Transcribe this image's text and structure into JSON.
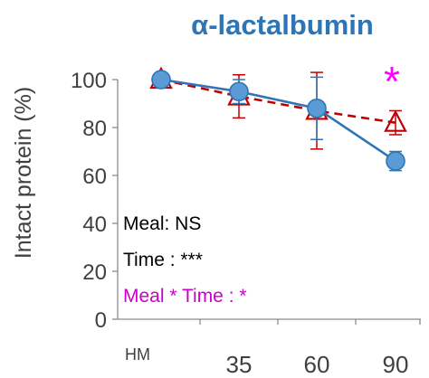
{
  "chart_data": {
    "type": "line",
    "title": "α-lactalbumin",
    "xlabel": "",
    "ylabel": "Intact protein (%)",
    "categories": [
      "HM",
      "35",
      "60",
      "90"
    ],
    "ylim": [
      0,
      100
    ],
    "yticks": [
      "0",
      "20",
      "40",
      "60",
      "80",
      "100"
    ],
    "series": [
      {
        "values": [
          100,
          95,
          88,
          66
        ],
        "error": [
          0,
          5,
          13,
          4
        ],
        "style": "solid-circle",
        "color": "#2E75B6",
        "fill": "#5B9BD5"
      },
      {
        "values": [
          100,
          93,
          87,
          82
        ],
        "error": [
          0,
          9,
          16,
          5
        ],
        "style": "dashed-triangle",
        "color": "#C00000"
      }
    ],
    "annotations": {
      "significance_marker": "*",
      "significance_color": "#FF00FF",
      "stats": [
        {
          "text": "Meal: NS",
          "color": "#000000"
        },
        {
          "text": "Time : ***",
          "color": "#000000"
        },
        {
          "text": "Meal * Time : *",
          "color": "#CC00CC"
        }
      ]
    },
    "title_color": "#2E75B6",
    "grid": false
  }
}
